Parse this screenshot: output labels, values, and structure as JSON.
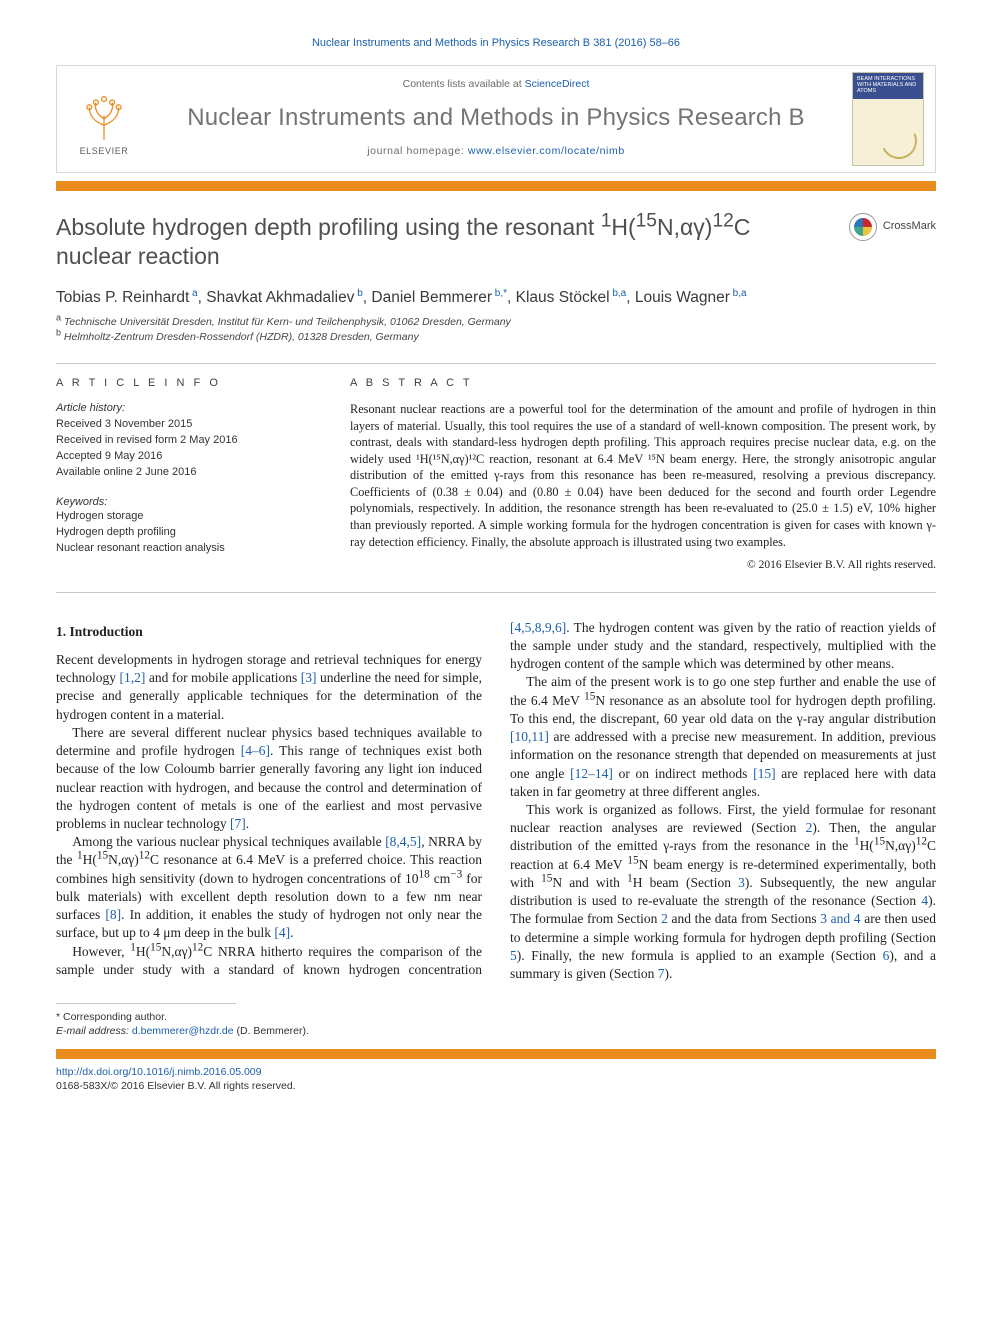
{
  "top_citation": "Nuclear Instruments and Methods in Physics Research B 381 (2016) 58–66",
  "masthead": {
    "contents_prefix": "Contents lists available at ",
    "contents_link": "ScienceDirect",
    "journal_title": "Nuclear Instruments and Methods in Physics Research B",
    "homepage_prefix": "journal homepage: ",
    "homepage_url": "www.elsevier.com/locate/nimb",
    "publisher_logo_text": "ELSEVIER",
    "cover_caption": "BEAM INTERACTIONS WITH MATERIALS AND ATOMS"
  },
  "crossmark_label": "CrossMark",
  "title_parts": {
    "pre": "Absolute hydrogen depth profiling using the resonant ",
    "formula_html": "<sup>1</sup>H(<sup>15</sup>N,αγ)<sup>12</sup>C",
    "post": " nuclear reaction"
  },
  "authors": [
    {
      "name": "Tobias P. Reinhardt",
      "aff": "a"
    },
    {
      "name": "Shavkat Akhmadaliev",
      "aff": "b"
    },
    {
      "name": "Daniel Bemmerer",
      "aff": "b,*"
    },
    {
      "name": "Klaus Stöckel",
      "aff": "b,a"
    },
    {
      "name": "Louis Wagner",
      "aff": "b,a"
    }
  ],
  "affiliations": [
    {
      "key": "a",
      "text": "Technische Universität Dresden, Institut für Kern- und Teilchenphysik, 01062 Dresden, Germany"
    },
    {
      "key": "b",
      "text": "Helmholtz-Zentrum Dresden-Rossendorf (HZDR), 01328 Dresden, Germany"
    }
  ],
  "info_head": "A R T I C L E   I N F O",
  "abs_head": "A B S T R A C T",
  "history": {
    "label": "Article history:",
    "lines": [
      "Received 3 November 2015",
      "Received in revised form 2 May 2016",
      "Accepted 9 May 2016",
      "Available online 2 June 2016"
    ]
  },
  "keywords_label": "Keywords:",
  "keywords": [
    "Hydrogen storage",
    "Hydrogen depth profiling",
    "Nuclear resonant reaction analysis"
  ],
  "abstract": "Resonant nuclear reactions are a powerful tool for the determination of the amount and profile of hydrogen in thin layers of material. Usually, this tool requires the use of a standard of well-known composition. The present work, by contrast, deals with standard-less hydrogen depth profiling. This approach requires precise nuclear data, e.g. on the widely used ¹H(¹⁵N,αγ)¹²C reaction, resonant at 6.4 MeV ¹⁵N beam energy. Here, the strongly anisotropic angular distribution of the emitted γ-rays from this resonance has been re-measured, resolving a previous discrepancy. Coefficients of (0.38 ± 0.04) and (0.80 ± 0.04) have been deduced for the second and fourth order Legendre polynomials, respectively. In addition, the resonance strength has been re-evaluated to (25.0 ± 1.5) eV, 10% higher than previously reported. A simple working formula for the hydrogen concentration is given for cases with known γ-ray detection efficiency. Finally, the absolute approach is illustrated using two examples.",
  "copyright": "© 2016 Elsevier B.V. All rights reserved.",
  "sections": {
    "intro_head": "1. Introduction"
  },
  "corresp": {
    "star": "* Corresponding author.",
    "email_label": "E-mail address:",
    "email": "d.bemmerer@hzdr.de",
    "who": "(D. Bemmerer)."
  },
  "doi": {
    "url": "http://dx.doi.org/10.1016/j.nimb.2016.05.009",
    "issn_line": "0168-583X/© 2016 Elsevier B.V. All rights reserved."
  },
  "colors": {
    "accent_orange": "#ea8b1f",
    "link_blue": "#1b5faa",
    "title_gray": "#747474"
  }
}
